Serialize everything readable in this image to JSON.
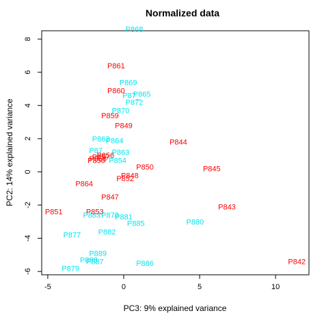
{
  "chart_data": {
    "type": "scatter",
    "title": "Normalized data",
    "xlabel": "PC3: 9% explained variance",
    "ylabel": "PC2: 14% explained variance",
    "xlim": [
      -5.4,
      12.2
    ],
    "ylim": [
      -6.2,
      8.5
    ],
    "xticks": [
      -5,
      0,
      5,
      10
    ],
    "yticks": [
      -6,
      -4,
      -2,
      0,
      2,
      4,
      6,
      8
    ],
    "grid": false,
    "colors": {
      "red": "#ff0000",
      "cyan": "#00e5ee"
    },
    "points": [
      {
        "label": "P868",
        "x": 0.7,
        "y": 8.6,
        "color": "cyan"
      },
      {
        "label": "P861",
        "x": -0.5,
        "y": 6.4,
        "color": "red"
      },
      {
        "label": "P869",
        "x": 0.3,
        "y": 5.4,
        "color": "cyan"
      },
      {
        "label": "P860",
        "x": -0.5,
        "y": 4.9,
        "color": "red"
      },
      {
        "label": "P865",
        "x": 1.2,
        "y": 4.7,
        "color": "cyan"
      },
      {
        "label": "P87_",
        "x": 0.5,
        "y": 4.6,
        "color": "cyan"
      },
      {
        "label": "P872",
        "x": 0.7,
        "y": 4.2,
        "color": "cyan"
      },
      {
        "label": "P870",
        "x": -0.2,
        "y": 3.7,
        "color": "cyan"
      },
      {
        "label": "P859",
        "x": -0.9,
        "y": 3.4,
        "color": "red"
      },
      {
        "label": "P849",
        "x": 0.0,
        "y": 2.8,
        "color": "red"
      },
      {
        "label": "P844",
        "x": 3.6,
        "y": 1.8,
        "color": "red"
      },
      {
        "label": "P862",
        "x": -1.5,
        "y": 2.0,
        "color": "cyan"
      },
      {
        "label": "P864",
        "x": -0.6,
        "y": 1.9,
        "color": "cyan"
      },
      {
        "label": "P87_",
        "x": -1.7,
        "y": 1.3,
        "color": "cyan"
      },
      {
        "label": "P863",
        "x": -0.2,
        "y": 1.2,
        "color": "cyan"
      },
      {
        "label": "P856",
        "x": -1.2,
        "y": 1.0,
        "color": "red"
      },
      {
        "label": "P857",
        "x": -1.5,
        "y": 0.9,
        "color": "red"
      },
      {
        "label": "P858",
        "x": -1.7,
        "y": 0.8,
        "color": "red"
      },
      {
        "label": "P850",
        "x": -1.8,
        "y": 0.7,
        "color": "red"
      },
      {
        "label": "P854",
        "x": -0.4,
        "y": 0.7,
        "color": "cyan"
      },
      {
        "label": "P850",
        "x": 1.4,
        "y": 0.3,
        "color": "red"
      },
      {
        "label": "P845",
        "x": 5.8,
        "y": 0.2,
        "color": "red"
      },
      {
        "label": "P848",
        "x": 0.4,
        "y": -0.2,
        "color": "red"
      },
      {
        "label": "P852",
        "x": 0.1,
        "y": -0.4,
        "color": "red"
      },
      {
        "label": "P864",
        "x": -2.6,
        "y": -0.7,
        "color": "red"
      },
      {
        "label": "P847",
        "x": -0.9,
        "y": -1.5,
        "color": "red"
      },
      {
        "label": "P843",
        "x": 6.8,
        "y": -2.1,
        "color": "red"
      },
      {
        "label": "P851",
        "x": -4.6,
        "y": -2.4,
        "color": "red"
      },
      {
        "label": "P853",
        "x": -1.9,
        "y": -2.4,
        "color": "red"
      },
      {
        "label": "P883",
        "x": -2.1,
        "y": -2.6,
        "color": "cyan"
      },
      {
        "label": "P878",
        "x": -0.9,
        "y": -2.6,
        "color": "cyan"
      },
      {
        "label": "P881",
        "x": 0.0,
        "y": -2.7,
        "color": "cyan"
      },
      {
        "label": "P885",
        "x": 0.8,
        "y": -3.1,
        "color": "cyan"
      },
      {
        "label": "P880",
        "x": 4.7,
        "y": -3.0,
        "color": "cyan"
      },
      {
        "label": "P882",
        "x": -1.1,
        "y": -3.6,
        "color": "cyan"
      },
      {
        "label": "P877",
        "x": -3.4,
        "y": -3.8,
        "color": "cyan"
      },
      {
        "label": "P889",
        "x": -1.7,
        "y": -4.9,
        "color": "cyan"
      },
      {
        "label": "P888",
        "x": -2.3,
        "y": -5.3,
        "color": "cyan"
      },
      {
        "label": "P887",
        "x": -1.9,
        "y": -5.4,
        "color": "cyan"
      },
      {
        "label": "P886",
        "x": 1.4,
        "y": -5.5,
        "color": "cyan"
      },
      {
        "label": "P842",
        "x": 11.4,
        "y": -5.4,
        "color": "red"
      },
      {
        "label": "P879",
        "x": -3.5,
        "y": -5.8,
        "color": "cyan"
      }
    ]
  }
}
